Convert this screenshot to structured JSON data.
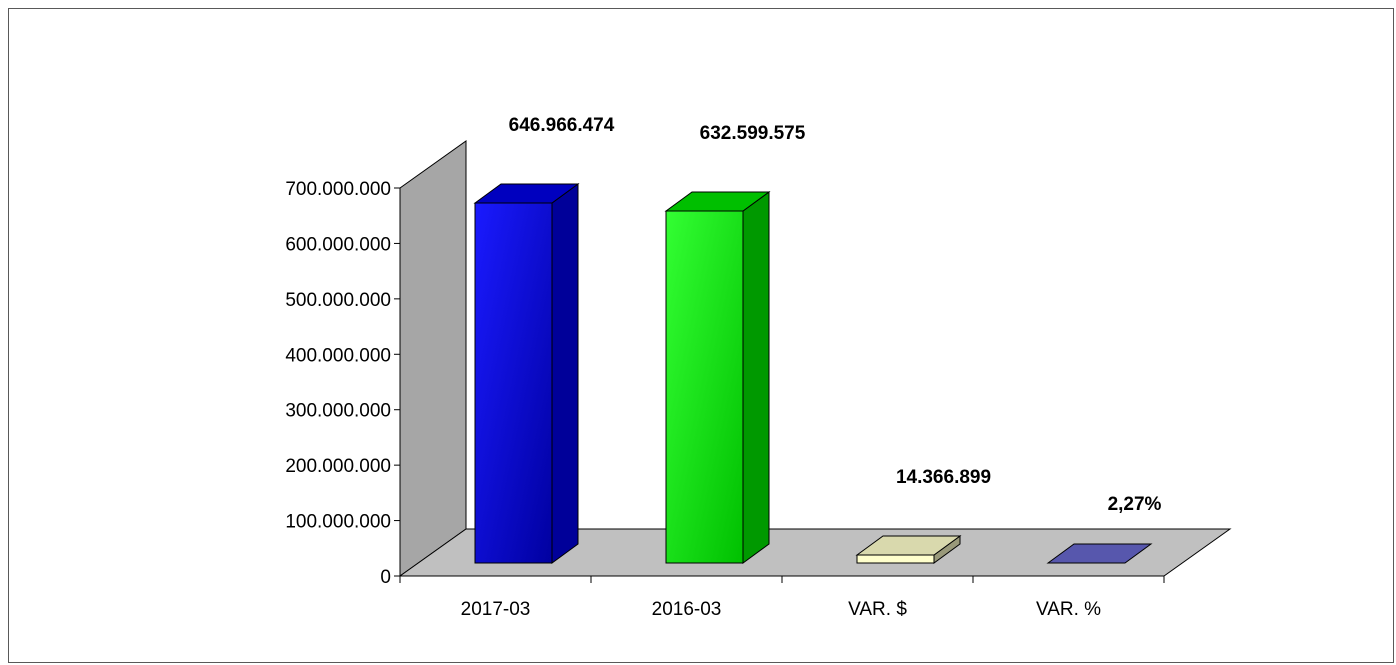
{
  "chart_data": {
    "type": "bar",
    "categories": [
      "2017-03",
      "2016-03",
      "VAR. $",
      "VAR. %"
    ],
    "values": [
      646966474,
      632599575,
      14366899,
      0
    ],
    "data_labels": [
      "646.966.474",
      "632.599.575",
      "14.366.899",
      "2,27%"
    ],
    "ylim": [
      0,
      700000000
    ],
    "yticks": [
      0,
      100000000,
      200000000,
      300000000,
      400000000,
      500000000,
      600000000,
      700000000
    ],
    "ytick_labels": [
      "0",
      "100.000.000",
      "200.000.000",
      "300.000.000",
      "400.000.000",
      "500.000.000",
      "600.000.000",
      "700.000.000"
    ],
    "grid": false,
    "legend": "none",
    "style": "3d",
    "colors": {
      "bars": [
        "#0000ff",
        "#00ff00",
        "#ffffcc",
        "#6666cc"
      ],
      "wall": "#a6a6a6",
      "floor": "#c0c0c0"
    }
  }
}
